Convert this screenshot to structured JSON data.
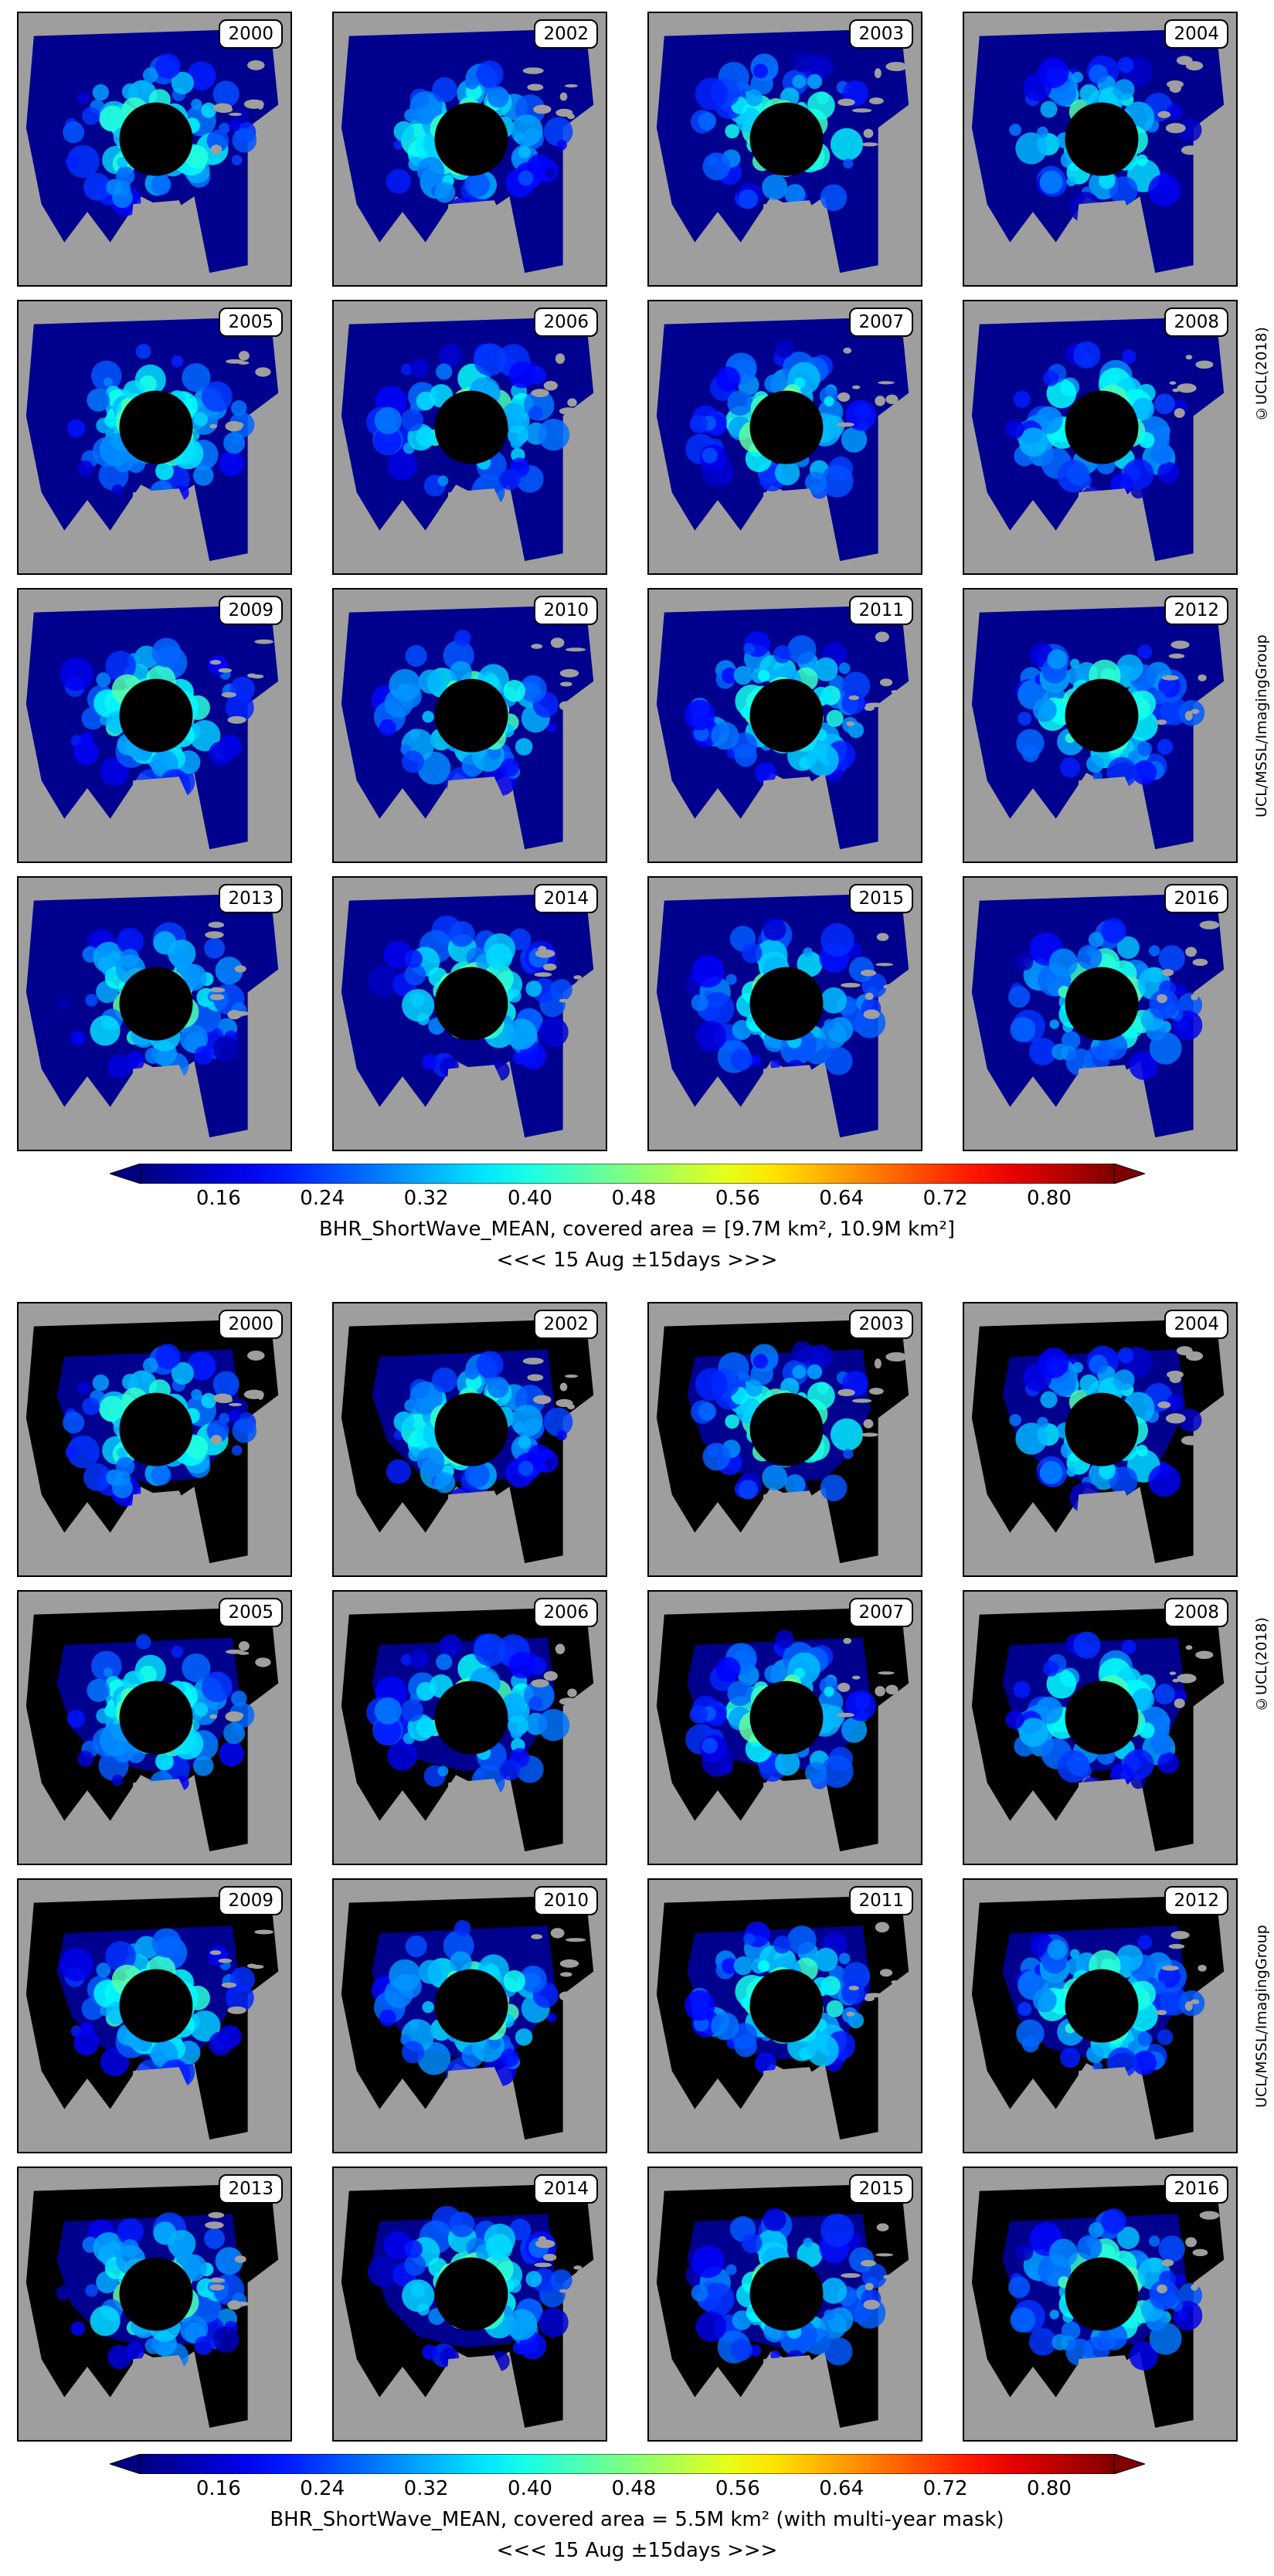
{
  "colors": {
    "ocean_low": "#00008f",
    "land": "#9e9e9e",
    "pole_hole": "#000000",
    "background_no_data": "#000000",
    "colormap": "jet"
  },
  "top_figure": {
    "years": [
      [
        "2000",
        "2002",
        "2003",
        "2004"
      ],
      [
        "2005",
        "2006",
        "2007",
        "2008"
      ],
      [
        "2009",
        "2010",
        "2011",
        "2012"
      ],
      [
        "2013",
        "2014",
        "2015",
        "2016"
      ]
    ],
    "credit_copyright": "©UCL(2018)",
    "credit_group": "UCL/MSSL/ImagingGroup",
    "colorbar": {
      "ticks": [
        "0.16",
        "0.24",
        "0.32",
        "0.40",
        "0.48",
        "0.56",
        "0.64",
        "0.72",
        "0.80"
      ],
      "vmin": 0.1,
      "vmax": 0.85,
      "extend": "both"
    },
    "caption_line1": "BHR_ShortWave_MEAN, covered area = [9.7M km², 10.9M km²]",
    "caption_line2": "<<< 15 Aug ±15days >>>"
  },
  "bottom_figure": {
    "years": [
      [
        "2000",
        "2002",
        "2003",
        "2004"
      ],
      [
        "2005",
        "2006",
        "2007",
        "2008"
      ],
      [
        "2009",
        "2010",
        "2011",
        "2012"
      ],
      [
        "2013",
        "2014",
        "2015",
        "2016"
      ]
    ],
    "credit_copyright": "©UCL(2018)",
    "credit_group": "UCL/MSSL/ImagingGroup",
    "colorbar": {
      "ticks": [
        "0.16",
        "0.24",
        "0.32",
        "0.40",
        "0.48",
        "0.56",
        "0.64",
        "0.72",
        "0.80"
      ],
      "vmin": 0.1,
      "vmax": 0.85,
      "extend": "both"
    },
    "caption_line1": "BHR_ShortWave_MEAN, covered area = 5.5M km²  (with multi-year mask)",
    "caption_line2": "<<< 15 Aug ±15days >>>"
  }
}
